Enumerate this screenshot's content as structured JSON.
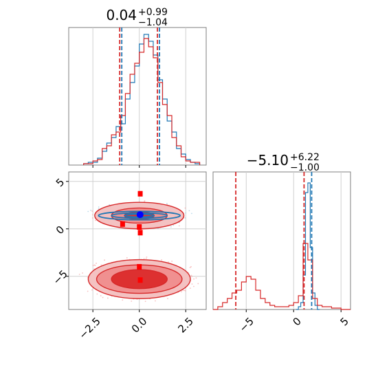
{
  "colors": {
    "blue": "#1f77b4",
    "red": "#d62728",
    "blue_point": "#0000ff",
    "red_point": "#ff0000",
    "grid": "#d0d0d0"
  },
  "chart_data": [
    {
      "type": "histogram",
      "panel": "top-left",
      "title_value": "0.04",
      "title_plus": "+0.99",
      "title_minus": "−1.04",
      "xlim": [
        -3.8,
        3.6
      ],
      "quantile_lines": [
        -1.0,
        1.03
      ],
      "series": [
        {
          "color": "blue",
          "bin_width": 0.25,
          "bins_start": -3.0,
          "counts": [
            0.01,
            0.02,
            0.02,
            0.05,
            0.1,
            0.16,
            0.2,
            0.28,
            0.3,
            0.48,
            0.6,
            0.72,
            0.88,
            0.95,
            0.9,
            0.8,
            0.62,
            0.48,
            0.32,
            0.24,
            0.12,
            0.08,
            0.04,
            0.02,
            0.01
          ]
        },
        {
          "color": "red",
          "bin_width": 0.25,
          "bins_start": -3.0,
          "counts": [
            0.01,
            0.01,
            0.03,
            0.04,
            0.12,
            0.14,
            0.22,
            0.24,
            0.36,
            0.52,
            0.66,
            0.74,
            0.82,
            0.92,
            0.86,
            0.78,
            0.6,
            0.44,
            0.36,
            0.2,
            0.14,
            0.06,
            0.03,
            0.02,
            0.02
          ]
        }
      ]
    },
    {
      "type": "contour",
      "panel": "bottom-left",
      "xlim": [
        -3.8,
        3.6
      ],
      "ylim": [
        -8.5,
        6.0
      ],
      "x_ticks": [
        -2.5,
        0.0,
        2.5
      ],
      "y_ticks": [
        5,
        0,
        -5
      ],
      "x_tick_labels": [
        "−2.5",
        "0.0",
        "2.5"
      ],
      "y_tick_labels": [
        "5",
        "0",
        "−5"
      ],
      "red_blobs": [
        {
          "cx": 0.0,
          "cy": 1.4,
          "levels": [
            [
              2.4,
              1.4
            ],
            [
              1.5,
              0.8
            ],
            [
              0.8,
              0.4
            ]
          ]
        },
        {
          "cx": 0.0,
          "cy": -5.3,
          "levels": [
            [
              2.75,
              2.05
            ],
            [
              2.3,
              1.5
            ],
            [
              1.5,
              1.0
            ]
          ]
        }
      ],
      "blue_levels": [
        [
          2.2,
          0.45
        ],
        [
          1.5,
          0.28
        ],
        [
          0.8,
          0.15
        ]
      ],
      "blue_center": [
        0.0,
        1.4
      ],
      "red_markers": [
        [
          0.05,
          3.7
        ],
        [
          -0.9,
          0.5
        ],
        [
          0.0,
          0.2
        ],
        [
          0.05,
          -0.4
        ],
        [
          0.0,
          -4.0
        ],
        [
          0.05,
          -5.4
        ]
      ],
      "blue_marker": [
        0.04,
        1.5
      ]
    },
    {
      "type": "histogram",
      "panel": "bottom-right",
      "title_value": "−5.10",
      "title_plus": "+6.22",
      "title_minus": "−1.00",
      "xlim": [
        -8.5,
        6.0
      ],
      "x_ticks": [
        -5,
        0,
        5
      ],
      "x_tick_labels": [
        "−5",
        "0",
        "5"
      ],
      "quantile_lines_red": [
        -6.1,
        1.1
      ],
      "quantile_lines_blue": [
        1.9
      ],
      "series": [
        {
          "color": "blue",
          "bin_width": 0.25,
          "bins_start": 0.25,
          "counts": [
            0.0,
            0.02,
            0.05,
            0.25,
            0.85,
            0.92,
            0.45,
            0.12,
            0.03,
            0.0
          ]
        },
        {
          "color": "red",
          "bin_width": 0.5,
          "bins_start": -8.5,
          "counts": [
            0.0,
            0.02,
            0.05,
            0.08,
            0.12,
            0.14,
            0.2,
            0.24,
            0.22,
            0.14,
            0.08,
            0.05,
            0.03,
            0.02,
            0.02,
            0.02,
            0.03,
            0.05,
            0.1,
            0.48,
            0.36,
            0.08,
            0.03,
            0.02,
            0.02,
            0.01,
            0.01,
            0.0,
            0.0
          ]
        }
      ]
    }
  ]
}
